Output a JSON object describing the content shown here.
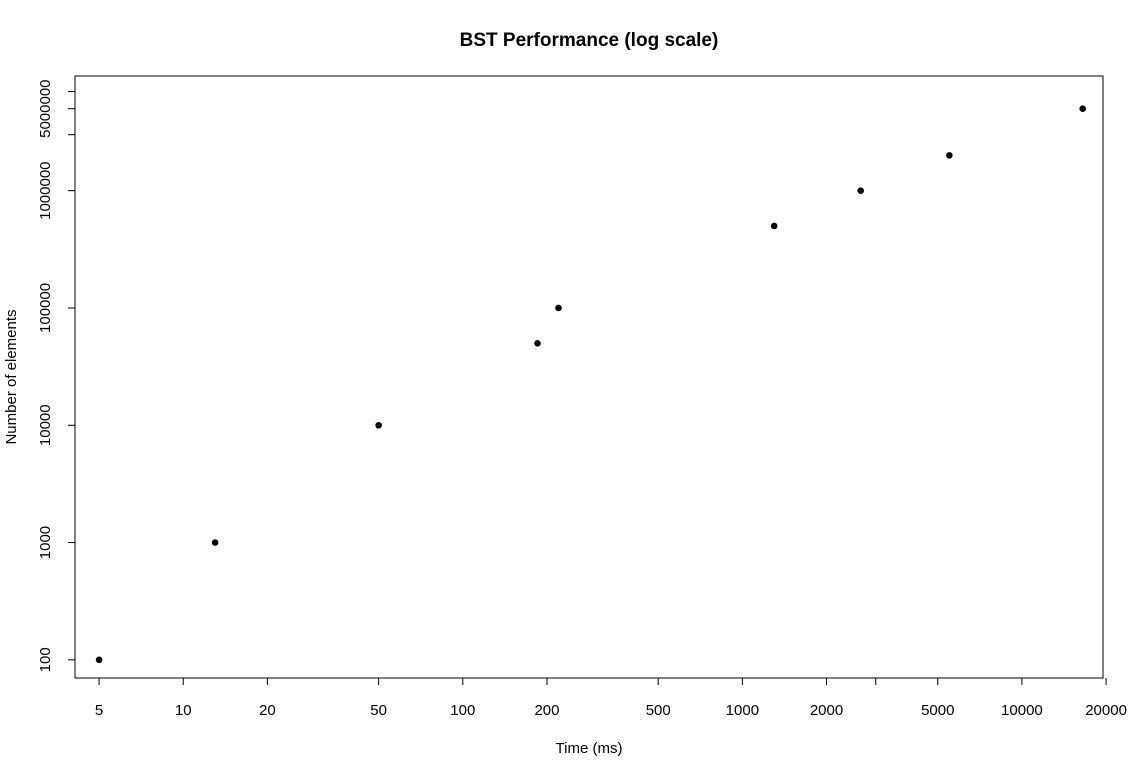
{
  "chart_data": {
    "type": "scatter",
    "title": "BST Performance (log scale)",
    "xlabel": "Time (ms)",
    "ylabel": "Number of elements",
    "xscale": "log",
    "yscale": "log",
    "xlim": [
      4.1,
      19500
    ],
    "ylim": [
      70,
      9500000
    ],
    "xticks": [
      5,
      10,
      20,
      50,
      100,
      200,
      500,
      1000,
      2000,
      5000,
      10000,
      20000
    ],
    "xtick_labels": [
      "5",
      "10",
      "20",
      "50",
      "100",
      "200",
      "500",
      "1000",
      "2000",
      "5000",
      "10000",
      "20000"
    ],
    "x_minor_ticks": [
      3000
    ],
    "yticks": [
      100,
      1000,
      10000,
      100000,
      1000000,
      5000000
    ],
    "ytick_labels": [
      "100",
      "1000",
      "10000",
      "100000",
      "1000000",
      "5000000"
    ],
    "y_minor_ticks": [
      3000000,
      7000000
    ],
    "grid": false,
    "legend": "none",
    "marker_color": "#000000",
    "series": [
      {
        "x": [
          5,
          13,
          50,
          185,
          220,
          1300,
          2650,
          5500,
          16500
        ],
        "y": [
          100,
          1000,
          10000,
          50000,
          100000,
          500000,
          1000000,
          2000000,
          5000000
        ]
      }
    ]
  }
}
